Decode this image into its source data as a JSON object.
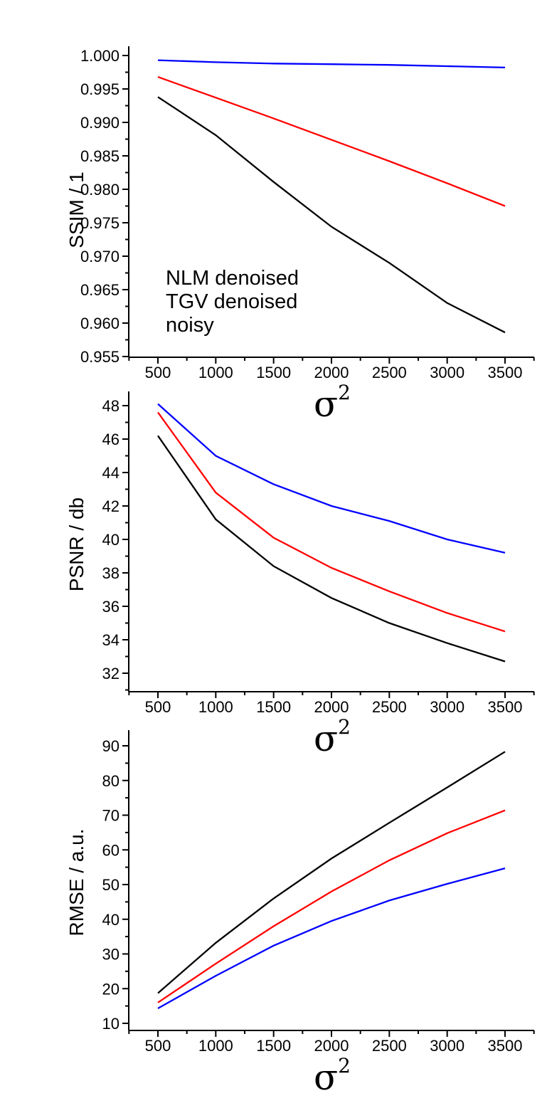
{
  "figure": {
    "background": "#ffffff",
    "accent_colors": {
      "nlm": "#ff0000",
      "tgv": "#0000ff",
      "noisy": "#000000"
    }
  },
  "chart_data": [
    {
      "type": "line",
      "title": "",
      "ylabel": "SSIM / 1",
      "xlabel_base": "σ",
      "xlabel_exp": "2",
      "x": [
        500,
        1000,
        1500,
        2000,
        2500,
        3000,
        3500
      ],
      "x_ticks": [
        "500",
        "1000",
        "1500",
        "2000",
        "2500",
        "3000",
        "3500"
      ],
      "y_ticks": [
        "0.955",
        "0.960",
        "0.965",
        "0.970",
        "0.975",
        "0.980",
        "0.985",
        "0.990",
        "0.995",
        "1.000"
      ],
      "ylim": [
        0.955,
        1.0
      ],
      "xlim": [
        250,
        3750
      ],
      "grid": false,
      "legend_position": "inside-bottom-left",
      "series": [
        {
          "name": "NLM denoised",
          "color": "#ff0000",
          "values": [
            0.9968,
            0.9937,
            0.9906,
            0.9874,
            0.9842,
            0.9809,
            0.9775
          ]
        },
        {
          "name": "TGV denoised",
          "color": "#0000ff",
          "values": [
            0.9993,
            0.999,
            0.9988,
            0.9987,
            0.9986,
            0.9984,
            0.9982
          ]
        },
        {
          "name": "noisy",
          "color": "#000000",
          "values": [
            0.9938,
            0.9881,
            0.9811,
            0.9744,
            0.969,
            0.963,
            0.9586
          ]
        }
      ],
      "legend": [
        {
          "label": "NLM denoised",
          "color": "#ff0000"
        },
        {
          "label": "TGV denoised",
          "color": "#0000ff"
        },
        {
          "label": "noisy",
          "color": "#000000"
        }
      ]
    },
    {
      "type": "line",
      "title": "",
      "ylabel": "PSNR / db",
      "xlabel_base": "σ",
      "xlabel_exp": "2",
      "x": [
        500,
        1000,
        1500,
        2000,
        2500,
        3000,
        3500
      ],
      "x_ticks": [
        "500",
        "1000",
        "1500",
        "2000",
        "2500",
        "3000",
        "3500"
      ],
      "y_ticks": [
        "32",
        "34",
        "36",
        "38",
        "40",
        "42",
        "44",
        "46",
        "48"
      ],
      "ylim": [
        32,
        48
      ],
      "xlim": [
        250,
        3750
      ],
      "grid": false,
      "series": [
        {
          "name": "NLM denoised",
          "color": "#ff0000",
          "values": [
            47.6,
            42.8,
            40.1,
            38.3,
            36.9,
            35.6,
            34.5
          ]
        },
        {
          "name": "TGV denoised",
          "color": "#0000ff",
          "values": [
            48.1,
            45.0,
            43.3,
            42.0,
            41.1,
            40.0,
            39.2
          ]
        },
        {
          "name": "noisy",
          "color": "#000000",
          "values": [
            46.2,
            41.2,
            38.4,
            36.5,
            35.0,
            33.8,
            32.7
          ]
        }
      ]
    },
    {
      "type": "line",
      "title": "",
      "ylabel": "RMSE / a.u.",
      "xlabel_base": "σ",
      "xlabel_exp": "2",
      "x": [
        500,
        1000,
        1500,
        2000,
        2500,
        3000,
        3500
      ],
      "x_ticks": [
        "500",
        "1000",
        "1500",
        "2000",
        "2500",
        "3000",
        "3500"
      ],
      "y_ticks": [
        "10",
        "20",
        "30",
        "40",
        "50",
        "60",
        "70",
        "80",
        "90"
      ],
      "ylim": [
        10,
        90
      ],
      "xlim": [
        250,
        3750
      ],
      "grid": false,
      "series": [
        {
          "name": "NLM denoised",
          "color": "#ff0000",
          "values": [
            16.0,
            27.2,
            38.0,
            48.0,
            57.0,
            64.8,
            71.4
          ]
        },
        {
          "name": "TGV denoised",
          "color": "#0000ff",
          "values": [
            14.3,
            23.7,
            32.4,
            39.5,
            45.4,
            50.2,
            54.7
          ]
        },
        {
          "name": "noisy",
          "color": "#000000",
          "values": [
            18.7,
            33.2,
            46.0,
            57.5,
            67.8,
            78.0,
            88.3
          ]
        }
      ]
    }
  ]
}
